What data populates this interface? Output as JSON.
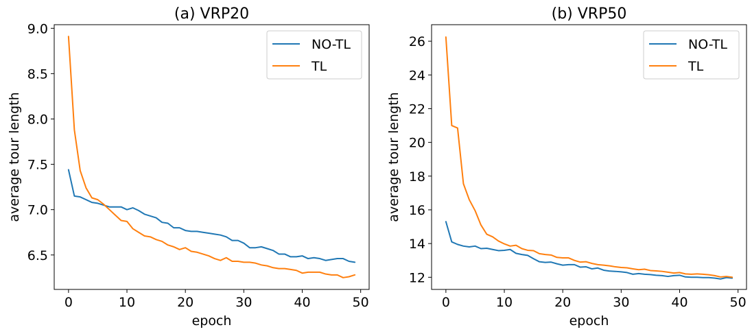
{
  "chart_data": [
    {
      "type": "line",
      "title": "(a) VRP20",
      "xlabel": "epoch",
      "ylabel": "average tour length",
      "xlim": [
        -2.45,
        51.45
      ],
      "ylim": [
        6.12,
        9.04
      ],
      "xticks": [
        0,
        10,
        20,
        30,
        40,
        50
      ],
      "yticks": [
        6.5,
        7.0,
        7.5,
        8.0,
        8.5,
        9.0
      ],
      "ytick_labels": [
        "6.5",
        "7.0",
        "7.5",
        "8.0",
        "8.5",
        "9.0"
      ],
      "grid": false,
      "legend_position": "top-right",
      "series": [
        {
          "name": "NO-TL",
          "color": "#1f77b4",
          "x": [
            0,
            1,
            2,
            3,
            4,
            5,
            6,
            7,
            8,
            9,
            10,
            11,
            12,
            13,
            14,
            15,
            16,
            17,
            18,
            19,
            20,
            21,
            22,
            23,
            24,
            25,
            26,
            27,
            28,
            29,
            30,
            31,
            32,
            33,
            34,
            35,
            36,
            37,
            38,
            39,
            40,
            41,
            42,
            43,
            44,
            45,
            46,
            47,
            48,
            49
          ],
          "values": [
            7.44,
            7.15,
            7.14,
            7.11,
            7.08,
            7.07,
            7.05,
            7.03,
            7.03,
            7.03,
            7.0,
            7.02,
            6.99,
            6.95,
            6.93,
            6.91,
            6.86,
            6.85,
            6.8,
            6.8,
            6.77,
            6.76,
            6.76,
            6.75,
            6.74,
            6.73,
            6.72,
            6.7,
            6.66,
            6.66,
            6.63,
            6.58,
            6.58,
            6.59,
            6.57,
            6.55,
            6.51,
            6.51,
            6.48,
            6.48,
            6.49,
            6.46,
            6.47,
            6.46,
            6.44,
            6.45,
            6.46,
            6.46,
            6.43,
            6.42
          ]
        },
        {
          "name": "TL",
          "color": "#ff7f0e",
          "x": [
            0,
            1,
            2,
            3,
            4,
            5,
            6,
            7,
            8,
            9,
            10,
            11,
            12,
            13,
            14,
            15,
            16,
            17,
            18,
            19,
            20,
            21,
            22,
            23,
            24,
            25,
            26,
            27,
            28,
            29,
            30,
            31,
            32,
            33,
            34,
            35,
            36,
            37,
            38,
            39,
            40,
            41,
            42,
            43,
            44,
            45,
            46,
            47,
            48,
            49
          ],
          "values": [
            8.91,
            7.88,
            7.43,
            7.24,
            7.13,
            7.11,
            7.06,
            7.0,
            6.94,
            6.88,
            6.87,
            6.79,
            6.75,
            6.71,
            6.7,
            6.67,
            6.65,
            6.61,
            6.59,
            6.56,
            6.58,
            6.54,
            6.53,
            6.51,
            6.49,
            6.46,
            6.44,
            6.47,
            6.43,
            6.43,
            6.42,
            6.42,
            6.41,
            6.39,
            6.38,
            6.36,
            6.35,
            6.35,
            6.34,
            6.33,
            6.3,
            6.31,
            6.31,
            6.31,
            6.29,
            6.28,
            6.28,
            6.25,
            6.26,
            6.28
          ]
        }
      ]
    },
    {
      "type": "line",
      "title": "(b) VRP50",
      "xlabel": "epoch",
      "ylabel": "average tour length",
      "xlim": [
        -2.45,
        51.45
      ],
      "ylim": [
        11.28,
        26.98
      ],
      "xticks": [
        0,
        10,
        20,
        30,
        40,
        50
      ],
      "yticks": [
        12,
        14,
        16,
        18,
        20,
        22,
        24,
        26
      ],
      "ytick_labels": [
        "12",
        "14",
        "16",
        "18",
        "20",
        "22",
        "24",
        "26"
      ],
      "grid": false,
      "legend_position": "top-right",
      "series": [
        {
          "name": "NO-TL",
          "color": "#1f77b4",
          "x": [
            0,
            1,
            2,
            3,
            4,
            5,
            6,
            7,
            8,
            9,
            10,
            11,
            12,
            13,
            14,
            15,
            16,
            17,
            18,
            19,
            20,
            21,
            22,
            23,
            24,
            25,
            26,
            27,
            28,
            29,
            30,
            31,
            32,
            33,
            34,
            35,
            36,
            37,
            38,
            39,
            40,
            41,
            42,
            43,
            44,
            45,
            46,
            47,
            48,
            49
          ],
          "values": [
            15.3,
            14.1,
            13.95,
            13.85,
            13.8,
            13.85,
            13.7,
            13.72,
            13.65,
            13.58,
            13.6,
            13.65,
            13.42,
            13.35,
            13.3,
            13.1,
            12.92,
            12.88,
            12.9,
            12.8,
            12.72,
            12.75,
            12.75,
            12.6,
            12.62,
            12.5,
            12.55,
            12.42,
            12.37,
            12.35,
            12.32,
            12.28,
            12.18,
            12.22,
            12.18,
            12.16,
            12.12,
            12.1,
            12.05,
            12.1,
            12.12,
            12.02,
            12.0,
            12.0,
            11.98,
            11.98,
            11.95,
            11.9,
            11.98,
            11.95
          ]
        },
        {
          "name": "TL",
          "color": "#ff7f0e",
          "x": [
            0,
            1,
            2,
            3,
            4,
            5,
            6,
            7,
            8,
            9,
            10,
            11,
            12,
            13,
            14,
            15,
            16,
            17,
            18,
            19,
            20,
            21,
            22,
            23,
            24,
            25,
            26,
            27,
            28,
            29,
            30,
            31,
            32,
            33,
            34,
            35,
            36,
            37,
            38,
            39,
            40,
            41,
            42,
            43,
            44,
            45,
            46,
            47,
            48,
            49
          ],
          "values": [
            26.25,
            21.0,
            20.85,
            17.55,
            16.6,
            15.95,
            15.1,
            14.55,
            14.4,
            14.15,
            13.98,
            13.85,
            13.9,
            13.7,
            13.6,
            13.58,
            13.4,
            13.35,
            13.32,
            13.18,
            13.15,
            13.15,
            13.0,
            12.9,
            12.92,
            12.82,
            12.75,
            12.72,
            12.68,
            12.62,
            12.58,
            12.56,
            12.5,
            12.45,
            12.48,
            12.4,
            12.38,
            12.35,
            12.3,
            12.25,
            12.28,
            12.2,
            12.18,
            12.2,
            12.18,
            12.15,
            12.1,
            12.02,
            12.05,
            12.0
          ]
        }
      ]
    }
  ]
}
